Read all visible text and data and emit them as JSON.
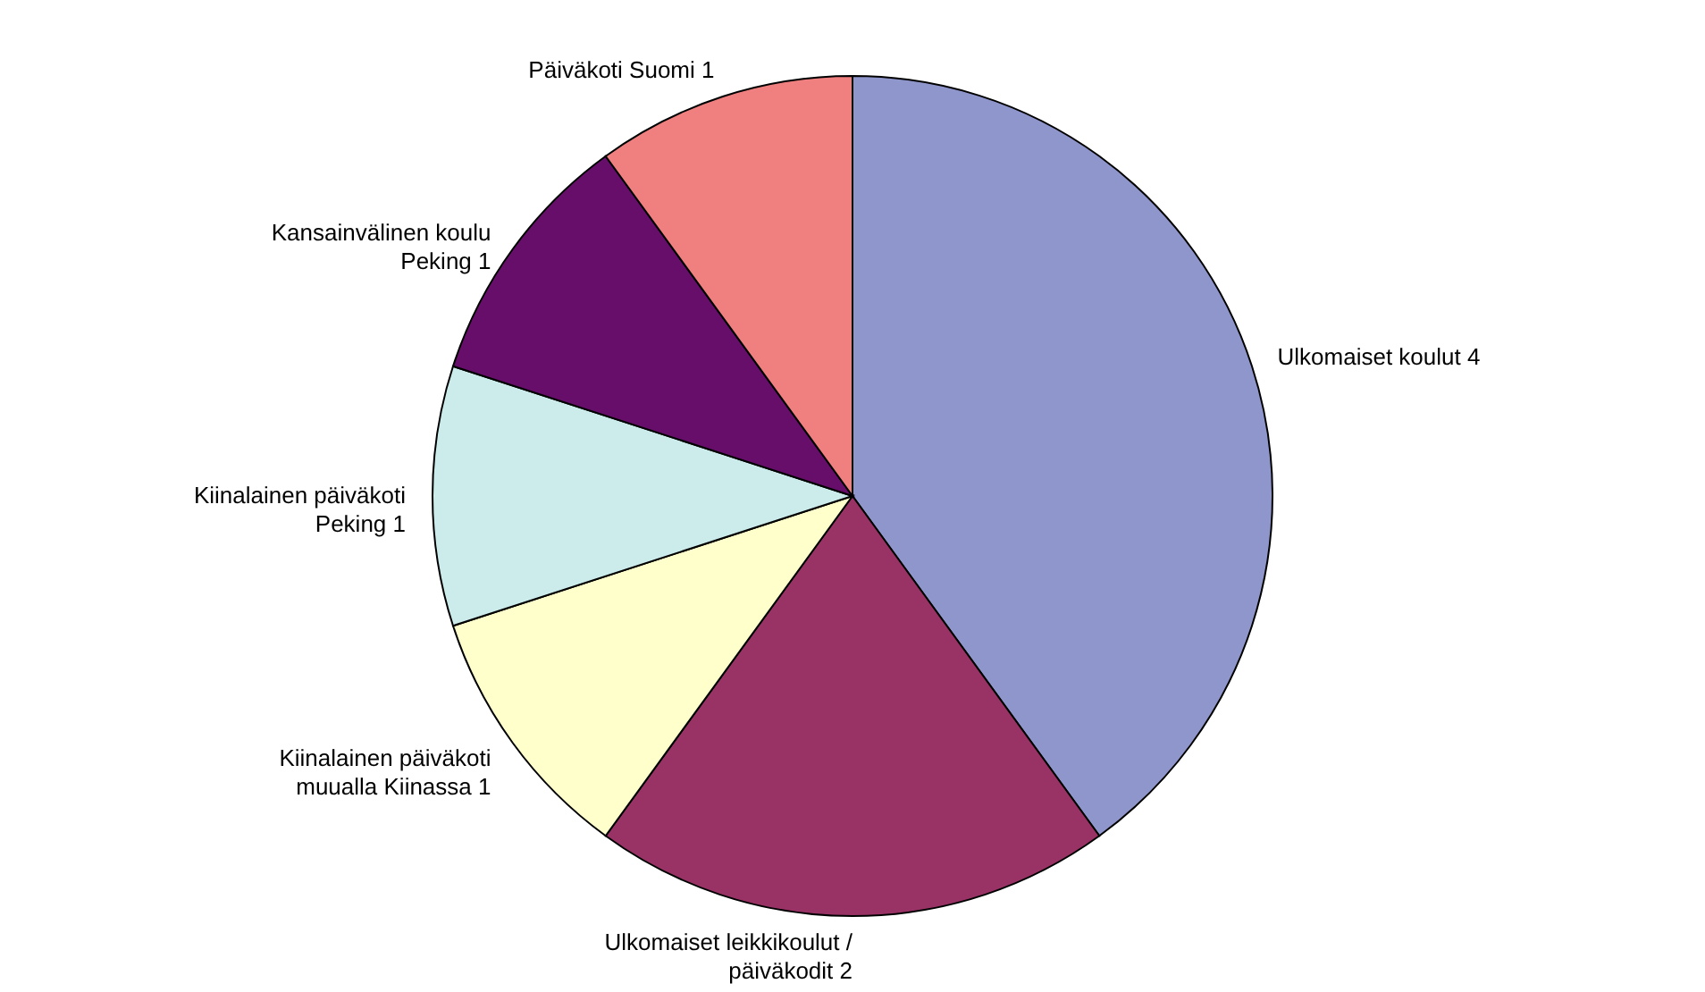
{
  "chart_data": {
    "type": "pie",
    "categories": [
      "Ulkomaiset koulut 4",
      "Ulkomaiset leikkikoulut / päiväkodit 2",
      "Kiinalainen päiväkoti muualla Kiinassa 1",
      "Kiinalainen päiväkoti Peking 1",
      "Kansainvälinen koulu Peking 1",
      "Päiväkoti Suomi 1"
    ],
    "values": [
      40,
      20,
      10,
      10,
      10,
      10
    ],
    "colors": [
      "#8e96cc",
      "#993366",
      "#ffffcc",
      "#ccecec",
      "#660e6a",
      "#f08080"
    ],
    "data_labels": false
  }
}
